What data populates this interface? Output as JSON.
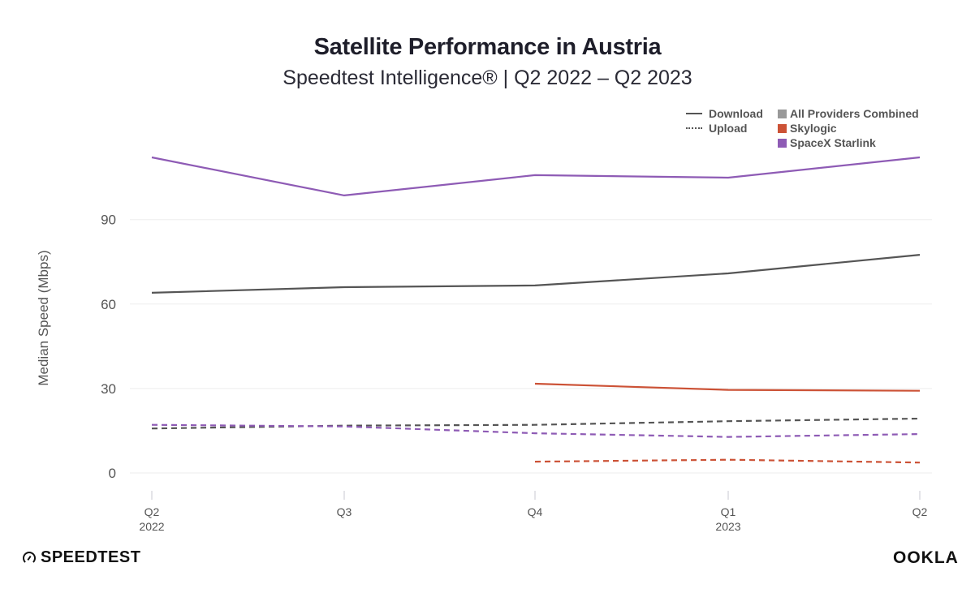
{
  "header": {
    "title": "Satellite Performance in Austria",
    "subtitle": "Speedtest Intelligence® | Q2 2022 – Q2 2023"
  },
  "legend": {
    "line_styles": [
      {
        "label": "Download",
        "style": "solid"
      },
      {
        "label": "Upload",
        "style": "dotted"
      }
    ],
    "providers": [
      {
        "label": "All Providers Combined",
        "color": "#999999"
      },
      {
        "label": "Skylogic",
        "color": "#cc5236"
      },
      {
        "label": "SpaceX Starlink",
        "color": "#8e5bb5"
      }
    ]
  },
  "branding": {
    "left_logo": "SPEEDTEST",
    "right_logo": "OOKLA"
  },
  "chart_data": {
    "type": "line",
    "title": "Satellite Performance in Austria",
    "subtitle": "Speedtest Intelligence® | Q2 2022 – Q2 2023",
    "xlabel": "",
    "ylabel": "Median Speed (Mbps)",
    "categories": [
      "Q2",
      "Q3",
      "Q4",
      "Q1",
      "Q2"
    ],
    "category_years": [
      "2022",
      "",
      "",
      "2023",
      ""
    ],
    "yticks": [
      0,
      30,
      60,
      90
    ],
    "ylim": [
      0,
      115
    ],
    "grid": true,
    "legend_position": "top-right",
    "series": [
      {
        "name": "SpaceX Starlink Download",
        "provider": "SpaceX Starlink",
        "metric": "Download",
        "color": "#8e5bb5",
        "dash": "solid",
        "values": [
          112.1,
          98.6,
          105.8,
          104.9,
          112.1
        ]
      },
      {
        "name": "All Providers Combined Download",
        "provider": "All Providers Combined",
        "metric": "Download",
        "color": "#555555",
        "dash": "solid",
        "values": [
          64.0,
          66.0,
          66.6,
          70.9,
          77.5
        ]
      },
      {
        "name": "Skylogic Download",
        "provider": "Skylogic",
        "metric": "Download",
        "color": "#cc5236",
        "dash": "solid",
        "values": [
          null,
          null,
          31.7,
          29.5,
          29.2
        ]
      },
      {
        "name": "All Providers Combined Upload",
        "provider": "All Providers Combined",
        "metric": "Upload",
        "color": "#555555",
        "dash": "dotted",
        "values": [
          15.8,
          16.8,
          17.1,
          18.4,
          19.3
        ]
      },
      {
        "name": "SpaceX Starlink Upload",
        "provider": "SpaceX Starlink",
        "metric": "Upload",
        "color": "#8e5bb5",
        "dash": "dotted",
        "values": [
          17.1,
          16.5,
          14.1,
          12.8,
          13.8
        ]
      },
      {
        "name": "Skylogic Upload",
        "provider": "Skylogic",
        "metric": "Upload",
        "color": "#cc5236",
        "dash": "dotted",
        "values": [
          null,
          null,
          4.0,
          4.7,
          3.7
        ]
      }
    ]
  }
}
